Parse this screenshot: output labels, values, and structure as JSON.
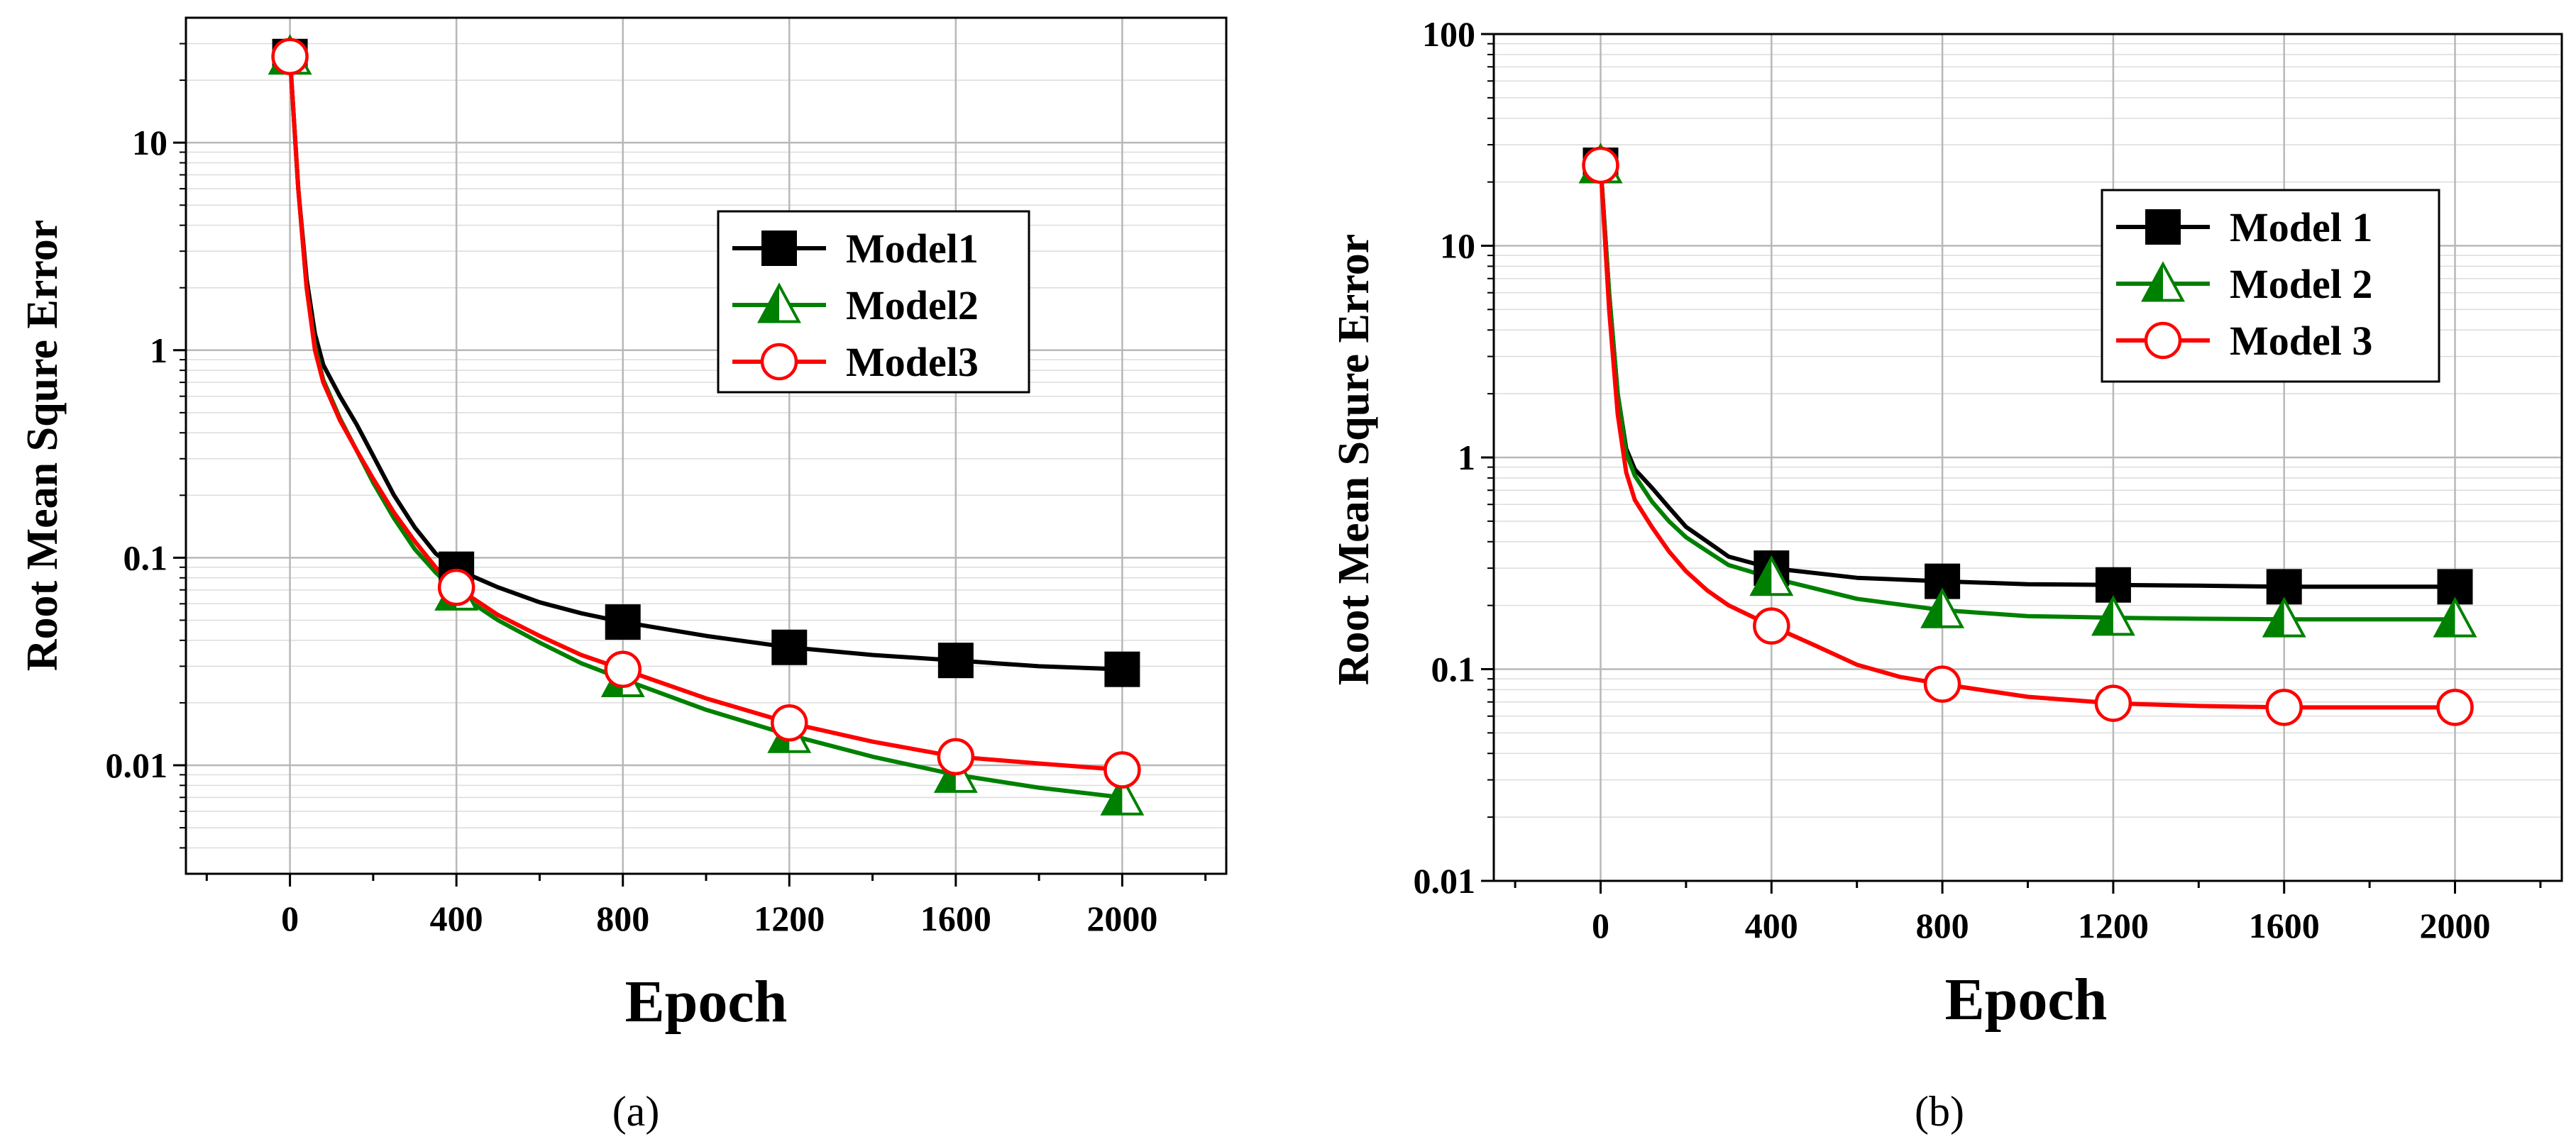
{
  "chart_data": [
    {
      "type": "line",
      "panel_label": "(a)",
      "xlabel": "Epoch",
      "ylabel": "Root Mean Squre Error",
      "yscale": "log",
      "xlim": [
        -250,
        2250
      ],
      "ylim": [
        0.003,
        40
      ],
      "xticks": [
        0,
        400,
        800,
        1200,
        1600,
        2000
      ],
      "xtick_labels": [
        "0",
        "400",
        "800",
        "1200",
        "1600",
        "2000"
      ],
      "yticks": [
        0.01,
        0.1,
        1,
        10
      ],
      "ytick_labels": [
        "0.01",
        "0.1",
        "1",
        "10"
      ],
      "grid": true,
      "legend_position": "upper-right",
      "x": [
        0,
        400,
        800,
        1200,
        1600,
        2000
      ],
      "series": [
        {
          "name": "Model1",
          "color": "#000000",
          "marker": "square",
          "values": [
            26,
            0.088,
            0.049,
            0.037,
            0.032,
            0.029
          ],
          "curve": [
            [
              0,
              26
            ],
            [
              20,
              6
            ],
            [
              40,
              2.2
            ],
            [
              60,
              1.2
            ],
            [
              80,
              0.85
            ],
            [
              120,
              0.6
            ],
            [
              160,
              0.44
            ],
            [
              200,
              0.31
            ],
            [
              250,
              0.2
            ],
            [
              300,
              0.14
            ],
            [
              350,
              0.105
            ],
            [
              400,
              0.088
            ],
            [
              500,
              0.072
            ],
            [
              600,
              0.061
            ],
            [
              700,
              0.054
            ],
            [
              800,
              0.049
            ],
            [
              1000,
              0.042
            ],
            [
              1200,
              0.037
            ],
            [
              1400,
              0.034
            ],
            [
              1600,
              0.032
            ],
            [
              1800,
              0.03
            ],
            [
              2000,
              0.029
            ]
          ]
        },
        {
          "name": "Model2",
          "color": "#008000",
          "marker": "triangle",
          "values": [
            26,
            0.068,
            0.026,
            0.014,
            0.009,
            0.007
          ],
          "curve": [
            [
              0,
              26
            ],
            [
              20,
              6
            ],
            [
              40,
              2
            ],
            [
              60,
              1.05
            ],
            [
              80,
              0.72
            ],
            [
              120,
              0.47
            ],
            [
              160,
              0.33
            ],
            [
              200,
              0.23
            ],
            [
              250,
              0.155
            ],
            [
              300,
              0.11
            ],
            [
              350,
              0.085
            ],
            [
              400,
              0.068
            ],
            [
              500,
              0.05
            ],
            [
              600,
              0.039
            ],
            [
              700,
              0.031
            ],
            [
              800,
              0.026
            ],
            [
              1000,
              0.0185
            ],
            [
              1200,
              0.014
            ],
            [
              1400,
              0.011
            ],
            [
              1600,
              0.009
            ],
            [
              1800,
              0.0078
            ],
            [
              2000,
              0.007
            ]
          ]
        },
        {
          "name": "Model3",
          "color": "#ff0000",
          "marker": "circle",
          "values": [
            26,
            0.072,
            0.029,
            0.016,
            0.011,
            0.0095
          ],
          "curve": [
            [
              0,
              26
            ],
            [
              20,
              6
            ],
            [
              40,
              2
            ],
            [
              60,
              1.0
            ],
            [
              80,
              0.7
            ],
            [
              120,
              0.46
            ],
            [
              160,
              0.33
            ],
            [
              200,
              0.24
            ],
            [
              250,
              0.165
            ],
            [
              300,
              0.12
            ],
            [
              350,
              0.09
            ],
            [
              400,
              0.072
            ],
            [
              500,
              0.053
            ],
            [
              600,
              0.042
            ],
            [
              700,
              0.034
            ],
            [
              800,
              0.029
            ],
            [
              1000,
              0.021
            ],
            [
              1200,
              0.016
            ],
            [
              1400,
              0.013
            ],
            [
              1600,
              0.011
            ],
            [
              1800,
              0.0102
            ],
            [
              2000,
              0.0095
            ]
          ]
        }
      ]
    },
    {
      "type": "line",
      "panel_label": "(b)",
      "xlabel": "Epoch",
      "ylabel": "Root Mean Squre Error",
      "yscale": "log",
      "xlim": [
        -250,
        2250
      ],
      "ylim": [
        0.01,
        100
      ],
      "xticks": [
        0,
        400,
        800,
        1200,
        1600,
        2000
      ],
      "xtick_labels": [
        "0",
        "400",
        "800",
        "1200",
        "1600",
        "2000"
      ],
      "yticks": [
        0.01,
        0.1,
        1,
        10,
        100
      ],
      "ytick_labels": [
        "0.01",
        "0.1",
        "1",
        "10",
        "100"
      ],
      "grid": true,
      "legend_position": "upper-right",
      "x": [
        0,
        400,
        800,
        1200,
        1600,
        2000
      ],
      "series": [
        {
          "name": "Model 1",
          "color": "#000000",
          "marker": "square",
          "values": [
            24,
            0.3,
            0.26,
            0.25,
            0.245,
            0.245
          ],
          "curve": [
            [
              0,
              24
            ],
            [
              20,
              6
            ],
            [
              40,
              2
            ],
            [
              60,
              1.1
            ],
            [
              80,
              0.88
            ],
            [
              120,
              0.72
            ],
            [
              160,
              0.58
            ],
            [
              200,
              0.47
            ],
            [
              250,
              0.4
            ],
            [
              300,
              0.34
            ],
            [
              400,
              0.3
            ],
            [
              600,
              0.27
            ],
            [
              800,
              0.26
            ],
            [
              1000,
              0.252
            ],
            [
              1200,
              0.25
            ],
            [
              1400,
              0.248
            ],
            [
              1600,
              0.245
            ],
            [
              2000,
              0.245
            ]
          ]
        },
        {
          "name": "Model 2",
          "color": "#008000",
          "marker": "triangle",
          "values": [
            24,
            0.27,
            0.19,
            0.175,
            0.172,
            0.172
          ],
          "curve": [
            [
              0,
              24
            ],
            [
              20,
              6
            ],
            [
              40,
              2
            ],
            [
              60,
              1.05
            ],
            [
              80,
              0.82
            ],
            [
              120,
              0.62
            ],
            [
              160,
              0.5
            ],
            [
              200,
              0.42
            ],
            [
              250,
              0.36
            ],
            [
              300,
              0.31
            ],
            [
              400,
              0.27
            ],
            [
              600,
              0.215
            ],
            [
              800,
              0.19
            ],
            [
              1000,
              0.178
            ],
            [
              1200,
              0.175
            ],
            [
              1400,
              0.173
            ],
            [
              1600,
              0.172
            ],
            [
              2000,
              0.172
            ]
          ]
        },
        {
          "name": "Model 3",
          "color": "#ff0000",
          "marker": "circle",
          "values": [
            24,
            0.16,
            0.085,
            0.069,
            0.066,
            0.066
          ],
          "curve": [
            [
              0,
              24
            ],
            [
              20,
              5
            ],
            [
              40,
              1.6
            ],
            [
              60,
              0.85
            ],
            [
              80,
              0.63
            ],
            [
              120,
              0.47
            ],
            [
              160,
              0.36
            ],
            [
              200,
              0.29
            ],
            [
              250,
              0.235
            ],
            [
              300,
              0.2
            ],
            [
              400,
              0.16
            ],
            [
              500,
              0.13
            ],
            [
              600,
              0.105
            ],
            [
              700,
              0.092
            ],
            [
              800,
              0.085
            ],
            [
              1000,
              0.074
            ],
            [
              1200,
              0.069
            ],
            [
              1400,
              0.067
            ],
            [
              1600,
              0.066
            ],
            [
              2000,
              0.066
            ]
          ]
        }
      ]
    }
  ]
}
